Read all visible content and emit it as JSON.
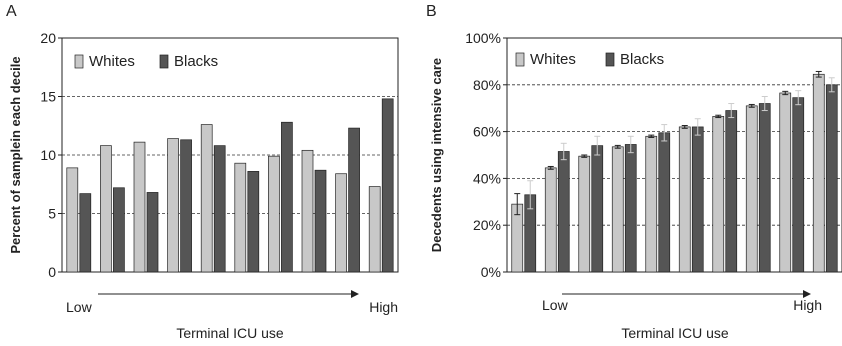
{
  "chart_data": [
    {
      "panel_label": "A",
      "type": "bar",
      "ylabel": "Percent of samplein each decile",
      "xlabel": "Terminal ICU use",
      "x_low_label": "Low",
      "x_high_label": "High",
      "ylim": [
        0,
        20
      ],
      "yticks": [
        0,
        5,
        10,
        15,
        20
      ],
      "ytick_labels": [
        "0",
        "5",
        "10",
        "15",
        "20"
      ],
      "grid": "dashed horizontal at 5, 10, 15",
      "legend": "top-left",
      "categories": [
        "1",
        "2",
        "3",
        "4",
        "5",
        "6",
        "7",
        "8",
        "9",
        "10"
      ],
      "series": [
        {
          "name": "Whites",
          "color": "#c8c8c8",
          "values": [
            8.9,
            10.8,
            11.1,
            11.4,
            12.6,
            9.3,
            9.9,
            10.4,
            8.4,
            7.3
          ]
        },
        {
          "name": "Blacks",
          "color": "#555555",
          "values": [
            6.7,
            7.2,
            6.8,
            11.3,
            10.8,
            8.6,
            12.8,
            8.7,
            12.3,
            14.8
          ]
        }
      ]
    },
    {
      "panel_label": "B",
      "type": "bar",
      "ylabel": "Decedents using intensive care",
      "xlabel": "Terminal ICU use",
      "x_low_label": "Low",
      "x_high_label": "High",
      "ylim": [
        0,
        100
      ],
      "yticks": [
        0,
        20,
        40,
        60,
        80,
        100
      ],
      "ytick_labels": [
        "0%",
        "20%",
        "40%",
        "60%",
        "80%",
        "100%"
      ],
      "grid": "dashed horizontal at 20, 40, 60, 80",
      "legend": "top-left",
      "categories": [
        "1",
        "2",
        "3",
        "4",
        "5",
        "6",
        "7",
        "8",
        "9",
        "10"
      ],
      "series": [
        {
          "name": "Whites",
          "color": "#c8c8c8",
          "values": [
            29,
            44.5,
            49.5,
            53.5,
            58,
            62,
            66.5,
            71,
            76.5,
            84.5
          ],
          "error": [
            4.5,
            0.6,
            0.5,
            0.6,
            0.5,
            0.6,
            0.5,
            0.6,
            0.7,
            1.2
          ]
        },
        {
          "name": "Blacks",
          "color": "#555555",
          "values": [
            33,
            51.5,
            54,
            54.5,
            59.5,
            62,
            69,
            72,
            74.5,
            80
          ],
          "error": [
            6,
            3.5,
            4,
            3.5,
            3.5,
            3.5,
            3,
            3,
            3,
            3
          ]
        }
      ]
    }
  ]
}
